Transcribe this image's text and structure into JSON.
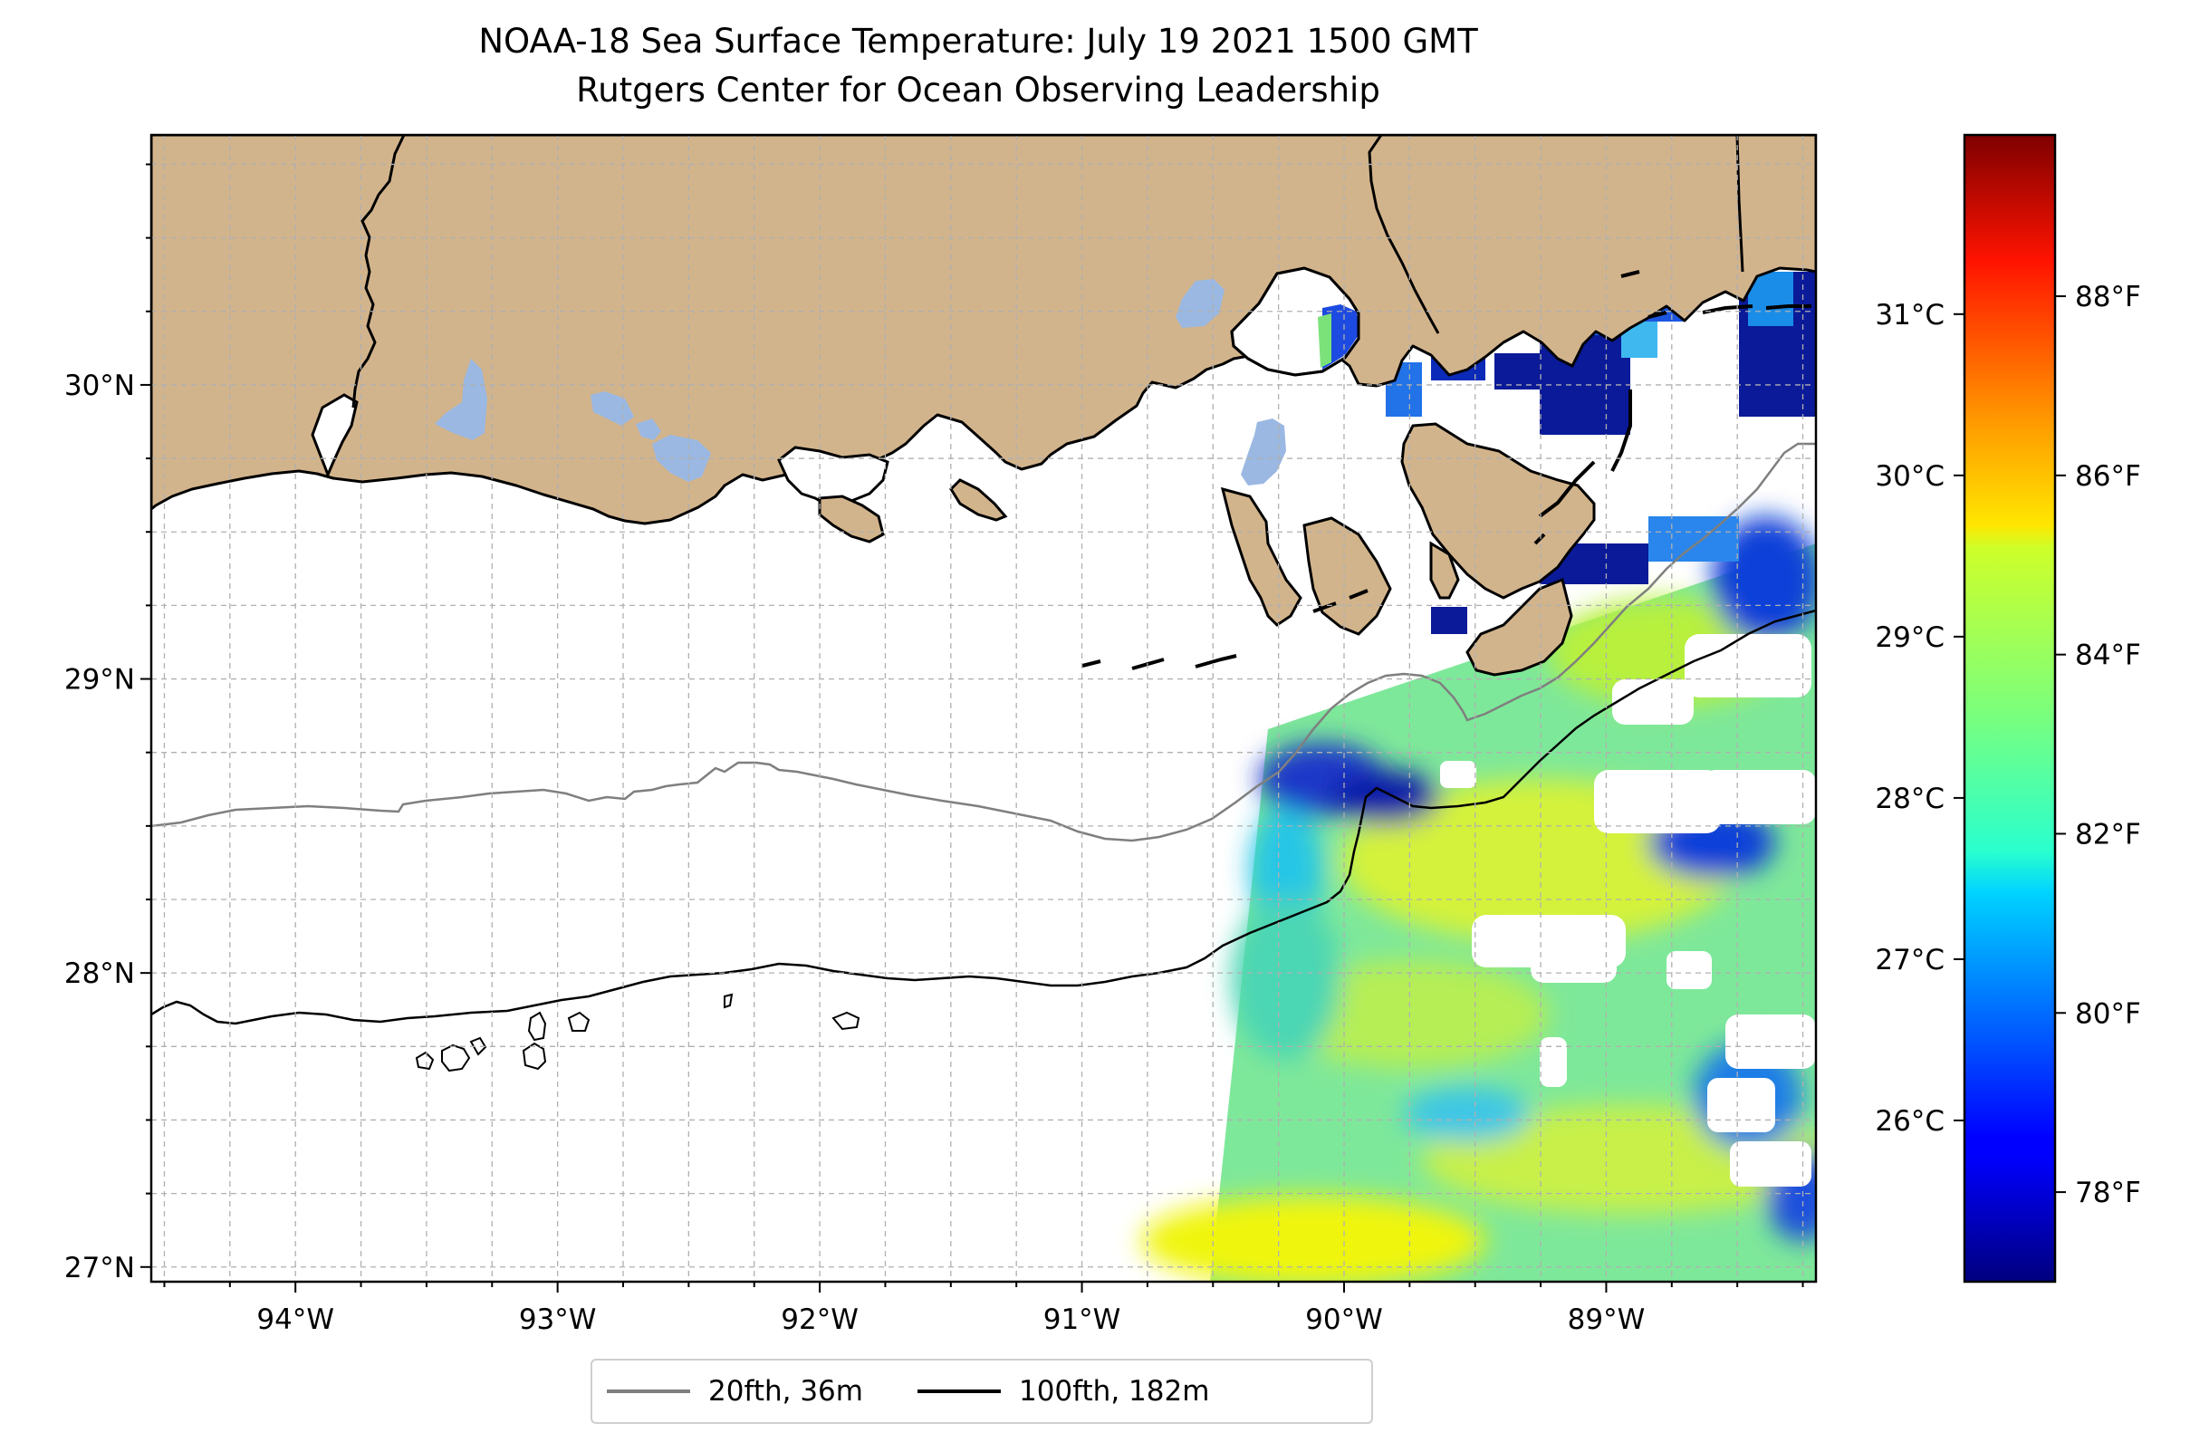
{
  "title": "NOAA-18 Sea Surface Temperature: July 19 2021 1500 GMT",
  "subtitle": "Rutgers Center for Ocean Observing Leadership",
  "map": {
    "lon_range": [
      -94.55,
      -88.2
    ],
    "lat_range": [
      26.95,
      30.85
    ],
    "lon_ticks": [
      {
        "value": -94,
        "label": "94°W"
      },
      {
        "value": -93,
        "label": "93°W"
      },
      {
        "value": -92,
        "label": "92°W"
      },
      {
        "value": -91,
        "label": "91°W"
      },
      {
        "value": -90,
        "label": "90°W"
      },
      {
        "value": -89,
        "label": "89°W"
      }
    ],
    "lat_ticks": [
      {
        "value": 30,
        "label": "30°N"
      },
      {
        "value": 29,
        "label": "29°N"
      },
      {
        "value": 28,
        "label": "28°N"
      },
      {
        "value": 27,
        "label": "27°N"
      }
    ],
    "minor_grid_step_deg": 0.25,
    "colors": {
      "land": "#d2b48c",
      "lakes": "#9ab8e2",
      "ocean": "#ffffff",
      "grid": "#b0b0b0"
    }
  },
  "colorbar": {
    "colormap": "jet",
    "range_f": [
      77.0,
      89.8
    ],
    "fahrenheit_ticks": [
      {
        "value": 78,
        "label": "78°F"
      },
      {
        "value": 80,
        "label": "80°F"
      },
      {
        "value": 82,
        "label": "82°F"
      },
      {
        "value": 84,
        "label": "84°F"
      },
      {
        "value": 86,
        "label": "86°F"
      },
      {
        "value": 88,
        "label": "88°F"
      }
    ],
    "celsius_ticks": [
      {
        "value": 26,
        "label": "26°C"
      },
      {
        "value": 27,
        "label": "27°C"
      },
      {
        "value": 28,
        "label": "28°C"
      },
      {
        "value": 29,
        "label": "29°C"
      },
      {
        "value": 30,
        "label": "30°C"
      },
      {
        "value": 31,
        "label": "31°C"
      }
    ]
  },
  "legend": {
    "items": [
      {
        "label": "20fth, 36m",
        "color": "#7f7f7f"
      },
      {
        "label": "100fth, 182m",
        "color": "#000000"
      }
    ]
  }
}
